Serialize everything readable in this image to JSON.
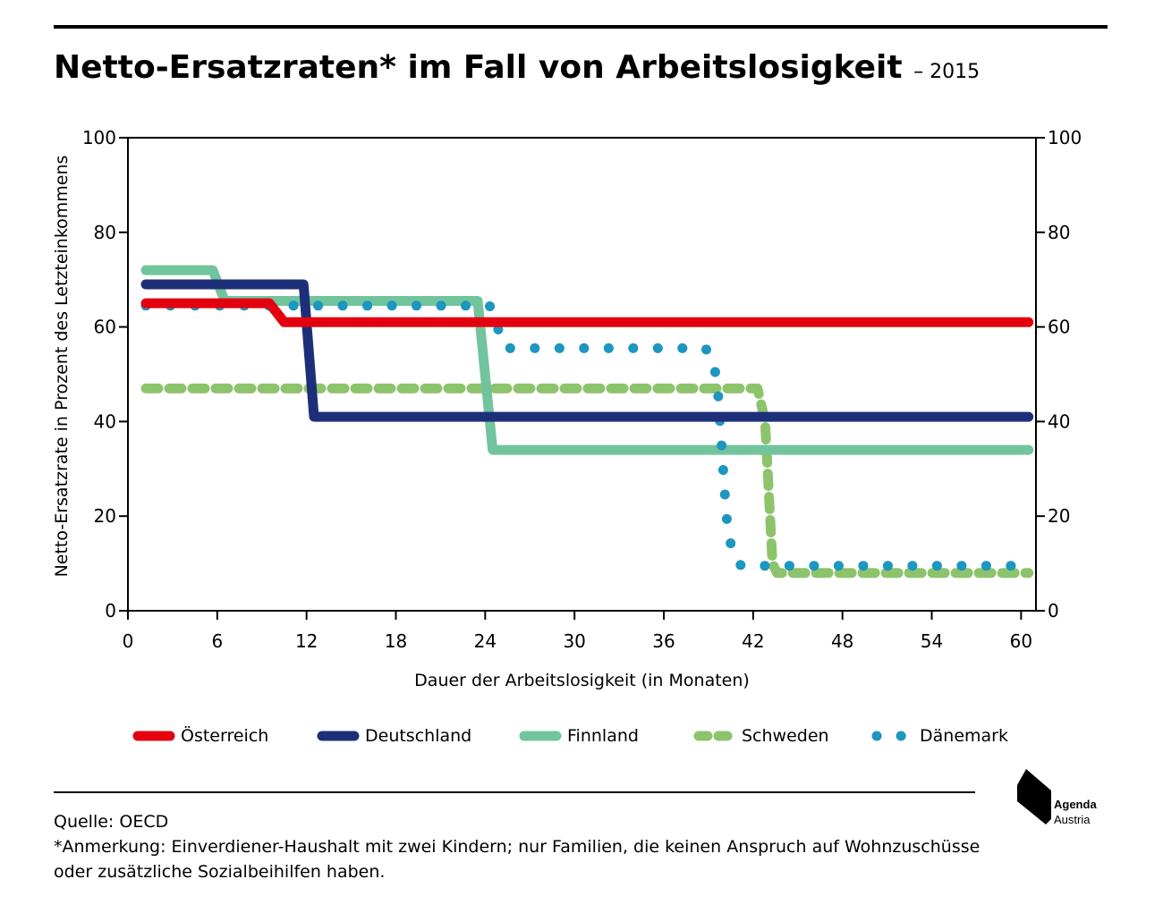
{
  "title": {
    "main": "Netto-Ersatzraten* im Fall von Arbeitslosigkeit",
    "suffix": "– 2015"
  },
  "chart_data": {
    "type": "line",
    "title": "Netto-Ersatzraten* im Fall von Arbeitslosigkeit – 2015",
    "xlabel": "Dauer der Arbeitslosigkeit (in Monaten)",
    "ylabel": "Netto-Ersatzrate in Prozent des Letzteinkommens",
    "xlim": [
      0,
      61
    ],
    "ylim": [
      0,
      100
    ],
    "x_ticks": [
      "0",
      "6",
      "12",
      "18",
      "24",
      "30",
      "36",
      "42",
      "48",
      "54",
      "60"
    ],
    "y_ticks": [
      "0",
      "20",
      "40",
      "60",
      "80",
      "100"
    ],
    "secondary_y_axis": true,
    "grid": false,
    "legend_position": "bottom",
    "series": [
      {
        "name": "Österreich",
        "color": "#e3000f",
        "style": "solid",
        "points": [
          [
            1.2,
            65
          ],
          [
            9.5,
            65
          ],
          [
            10.5,
            61
          ],
          [
            60.5,
            61
          ]
        ]
      },
      {
        "name": "Deutschland",
        "color": "#1e2f7a",
        "style": "solid",
        "points": [
          [
            1.2,
            69
          ],
          [
            11.8,
            69
          ],
          [
            12.5,
            41
          ],
          [
            60.5,
            41
          ]
        ]
      },
      {
        "name": "Finnland",
        "color": "#72c49d",
        "style": "solid",
        "points": [
          [
            1.2,
            72
          ],
          [
            5.7,
            72
          ],
          [
            6.5,
            65.5
          ],
          [
            23.5,
            65.5
          ],
          [
            24.5,
            34
          ],
          [
            60.5,
            34
          ]
        ]
      },
      {
        "name": "Schweden",
        "color": "#8dc46b",
        "style": "dashed",
        "points": [
          [
            1.2,
            47
          ],
          [
            42.3,
            47
          ],
          [
            42.8,
            40
          ],
          [
            43.3,
            10
          ],
          [
            43.6,
            8
          ],
          [
            60.5,
            8
          ]
        ]
      },
      {
        "name": "Dänemark",
        "color": "#1d96c0",
        "style": "dotted",
        "points": [
          [
            1.2,
            64.5
          ],
          [
            24.3,
            64.5
          ],
          [
            24.8,
            60
          ],
          [
            25.4,
            55.5
          ],
          [
            38.8,
            55.5
          ],
          [
            39.3,
            53
          ],
          [
            39.6,
            48
          ],
          [
            40.2,
            20
          ],
          [
            40.6,
            12
          ],
          [
            41.2,
            9.5
          ],
          [
            60.5,
            9.5
          ]
        ]
      }
    ]
  },
  "footer": {
    "source": "Quelle: OECD",
    "note": "*Anmerkung: Einverdiener-Haushalt mit zwei Kindern; nur Familien, die keinen Anspruch auf Wohnzuschüsse oder zusätzliche Sozialbeihilfen haben."
  },
  "logo": {
    "line1": "Agenda",
    "line2": "Austria"
  }
}
